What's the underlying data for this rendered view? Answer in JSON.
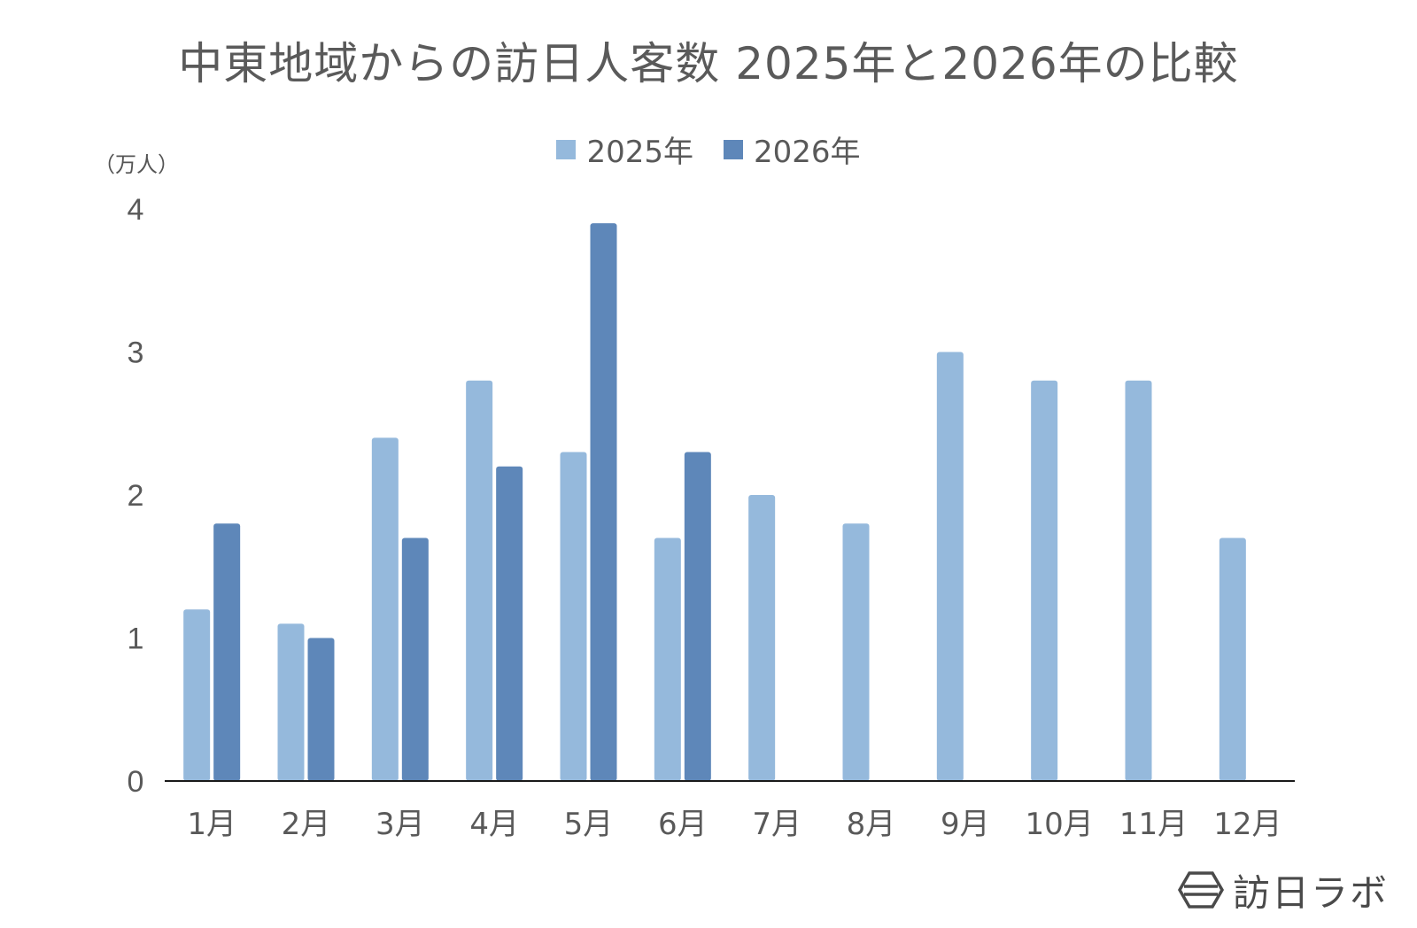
{
  "chart_data": {
    "type": "bar",
    "title": "中東地域からの訪日人客数 2025年と2026年の比較",
    "unit_label": "（万人）",
    "categories": [
      "1月",
      "2月",
      "3月",
      "4月",
      "5月",
      "6月",
      "7月",
      "8月",
      "9月",
      "10月",
      "11月",
      "12月"
    ],
    "series": [
      {
        "name": "2025年",
        "color": "#95b9dc",
        "values": [
          1.2,
          1.1,
          2.4,
          2.8,
          2.3,
          1.7,
          2.0,
          1.8,
          3.0,
          2.8,
          2.8,
          1.7
        ]
      },
      {
        "name": "2026年",
        "color": "#5e87b9",
        "values": [
          1.8,
          1.0,
          1.7,
          2.2,
          3.9,
          2.3,
          null,
          null,
          null,
          null,
          null,
          null
        ]
      }
    ],
    "ylim": [
      0,
      4
    ],
    "yticks": [
      "0",
      "1",
      "2",
      "3",
      "4"
    ],
    "grid": false,
    "legend_position": "top"
  },
  "branding": {
    "logo_text": "訪日ラボ",
    "logo_icon": "hexagon-logo-icon"
  }
}
